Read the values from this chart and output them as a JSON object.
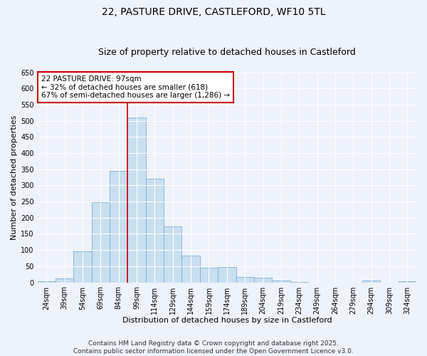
{
  "title_line1": "22, PASTURE DRIVE, CASTLEFORD, WF10 5TL",
  "title_line2": "Size of property relative to detached houses in Castleford",
  "xlabel": "Distribution of detached houses by size in Castleford",
  "ylabel": "Number of detached properties",
  "bar_color": "#c8dff0",
  "bar_edge_color": "#7ab0d4",
  "categories": [
    "24sqm",
    "39sqm",
    "54sqm",
    "69sqm",
    "84sqm",
    "99sqm",
    "114sqm",
    "129sqm",
    "144sqm",
    "159sqm",
    "174sqm",
    "189sqm",
    "204sqm",
    "219sqm",
    "234sqm",
    "249sqm",
    "264sqm",
    "279sqm",
    "294sqm",
    "309sqm",
    "324sqm"
  ],
  "values": [
    3,
    12,
    97,
    247,
    344,
    511,
    321,
    174,
    83,
    45,
    48,
    17,
    14,
    5,
    2,
    0,
    0,
    0,
    5,
    0,
    3
  ],
  "property_label": "22 PASTURE DRIVE: 97sqm",
  "annotation_line2": "← 32% of detached houses are smaller (618)",
  "annotation_line3": "67% of semi-detached houses are larger (1,286) →",
  "vline_x": 4.5,
  "ylim": [
    0,
    650
  ],
  "yticks": [
    0,
    50,
    100,
    150,
    200,
    250,
    300,
    350,
    400,
    450,
    500,
    550,
    600,
    650
  ],
  "footer_line1": "Contains HM Land Registry data © Crown copyright and database right 2025.",
  "footer_line2": "Contains public sector information licensed under the Open Government Licence v3.0.",
  "background_color": "#eef2fb",
  "annotation_box_color": "#ffffff",
  "annotation_box_edge": "#cc0000",
  "vline_color": "#cc0000",
  "title_fontsize": 10,
  "subtitle_fontsize": 9,
  "axis_label_fontsize": 8,
  "tick_fontsize": 7,
  "annotation_fontsize": 7.5,
  "footer_fontsize": 6.5
}
